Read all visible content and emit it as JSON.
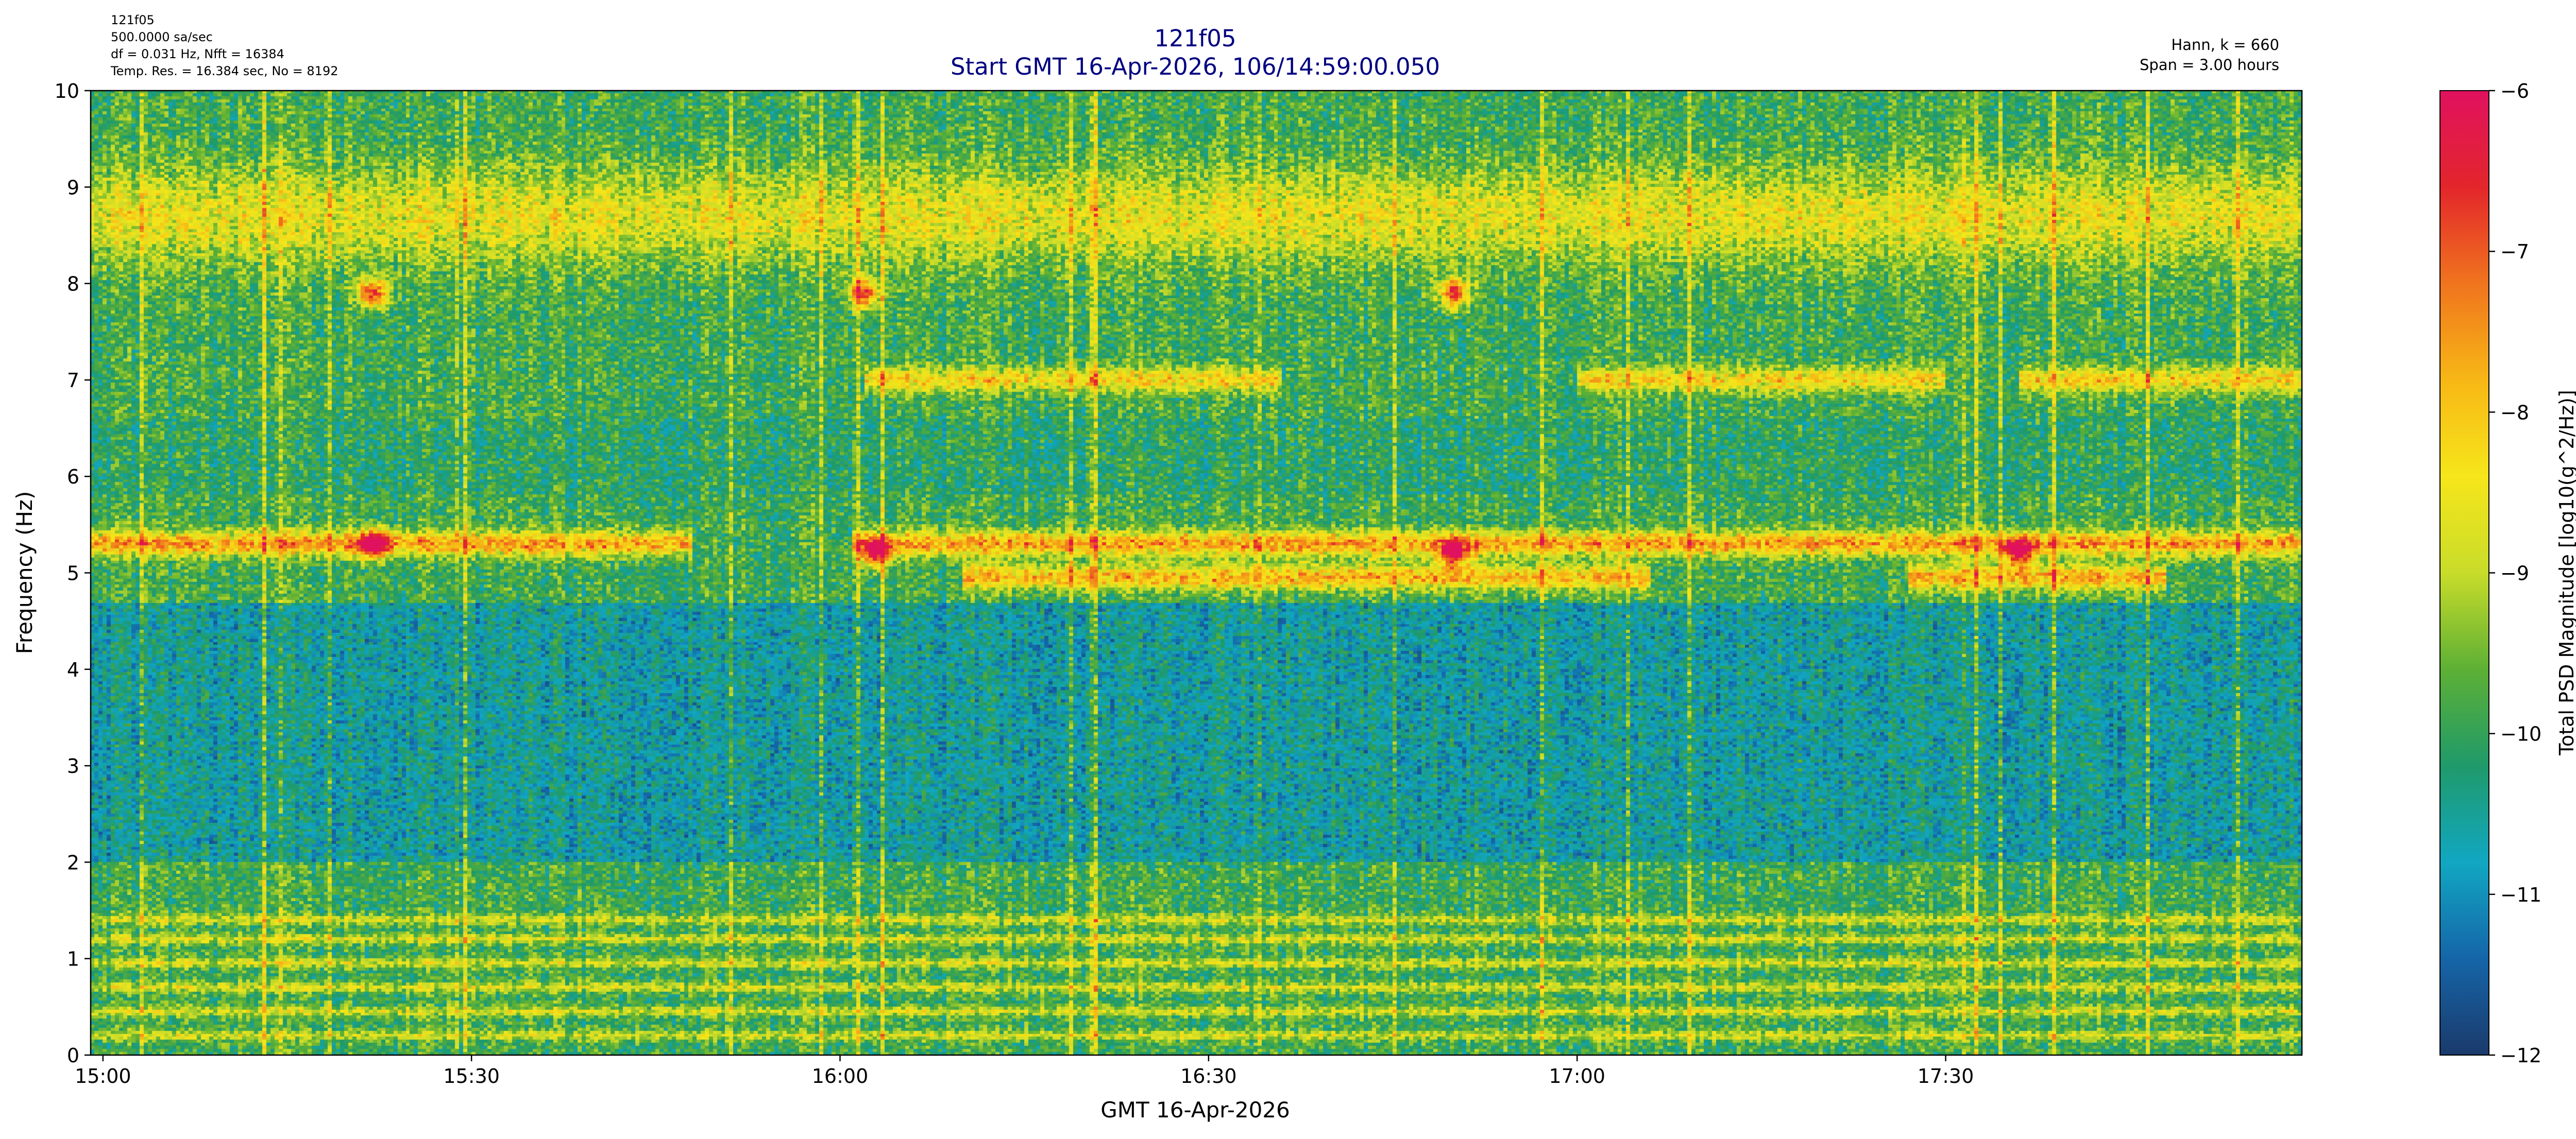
{
  "header": {
    "info_left": [
      "121f05",
      "500.0000 sa/sec",
      "df = 0.031 Hz,  Nfft = 16384",
      "Temp. Res. = 16.384 sec, No = 8192"
    ],
    "info_right": [
      "Hann, k = 660",
      "Span = 3.00 hours"
    ],
    "title": "121f05",
    "subtitle": "Start GMT 16-Apr-2026, 106/14:59:00.050",
    "title_color": "#000080"
  },
  "chart_data": {
    "type": "heatmap",
    "title": "121f05",
    "subtitle": "Start GMT 16-Apr-2026, 106/14:59:00.050",
    "xlabel": "GMT 16-Apr-2026",
    "ylabel": "Frequency (Hz)",
    "x_range_minutes_from_1500": [
      -1,
      179
    ],
    "x_ticks": [
      {
        "minute": 0,
        "label": "15:00"
      },
      {
        "minute": 30,
        "label": "15:30"
      },
      {
        "minute": 60,
        "label": "16:00"
      },
      {
        "minute": 90,
        "label": "16:30"
      },
      {
        "minute": 120,
        "label": "17:00"
      },
      {
        "minute": 150,
        "label": "17:30"
      }
    ],
    "ylim": [
      0,
      10
    ],
    "y_ticks": [
      0,
      1,
      2,
      3,
      4,
      5,
      6,
      7,
      8,
      9,
      10
    ],
    "colorbar": {
      "label": "Total PSD Magnitude [log10(g^2/Hz)]",
      "range": [
        -12,
        -6
      ],
      "ticks": [
        -12,
        -11,
        -10,
        -9,
        -8,
        -7,
        -6
      ],
      "tick_labels": [
        "−12",
        "−11",
        "−10",
        "−9",
        "−8",
        "−7",
        "−6"
      ],
      "colors": [
        "#1b3a6b",
        "#1565a8",
        "#11a7c2",
        "#1f9a6a",
        "#5db035",
        "#c8dc2a",
        "#f6e61a",
        "#f7b716",
        "#f0741e",
        "#e3262b",
        "#e0115f"
      ]
    },
    "features": {
      "background_level": -9.9,
      "harmonic_lines_hz": [
        0.2,
        0.45,
        0.7,
        0.95,
        1.2,
        1.4
      ],
      "band_5_3hz": {
        "freq_hz": 5.3,
        "level": -7.6,
        "segments_min": [
          [
            -1,
            48
          ],
          [
            61,
            179
          ]
        ]
      },
      "band_5_0hz": {
        "freq_hz": 4.95,
        "level": -7.8,
        "segments_min": [
          [
            70,
            126
          ],
          [
            147,
            168
          ]
        ]
      },
      "band_7_0hz": {
        "freq_hz": 7.0,
        "level": -8.2,
        "segments_min": [
          [
            62,
            96
          ],
          [
            120,
            150
          ],
          [
            156,
            179
          ]
        ]
      },
      "band_8_7hz": {
        "freq_hz": 8.7,
        "level": -8.6,
        "segments_min": [
          [
            -1,
            179
          ]
        ]
      },
      "red_spots": [
        {
          "minute": 22,
          "freq_hz": 7.9
        },
        {
          "minute": 62,
          "freq_hz": 7.9
        },
        {
          "minute": 110,
          "freq_hz": 7.9
        },
        {
          "minute": 22,
          "freq_hz": 5.3
        },
        {
          "minute": 63,
          "freq_hz": 5.2
        },
        {
          "minute": 110,
          "freq_hz": 5.2
        },
        {
          "minute": 156,
          "freq_hz": 5.2
        }
      ]
    }
  }
}
